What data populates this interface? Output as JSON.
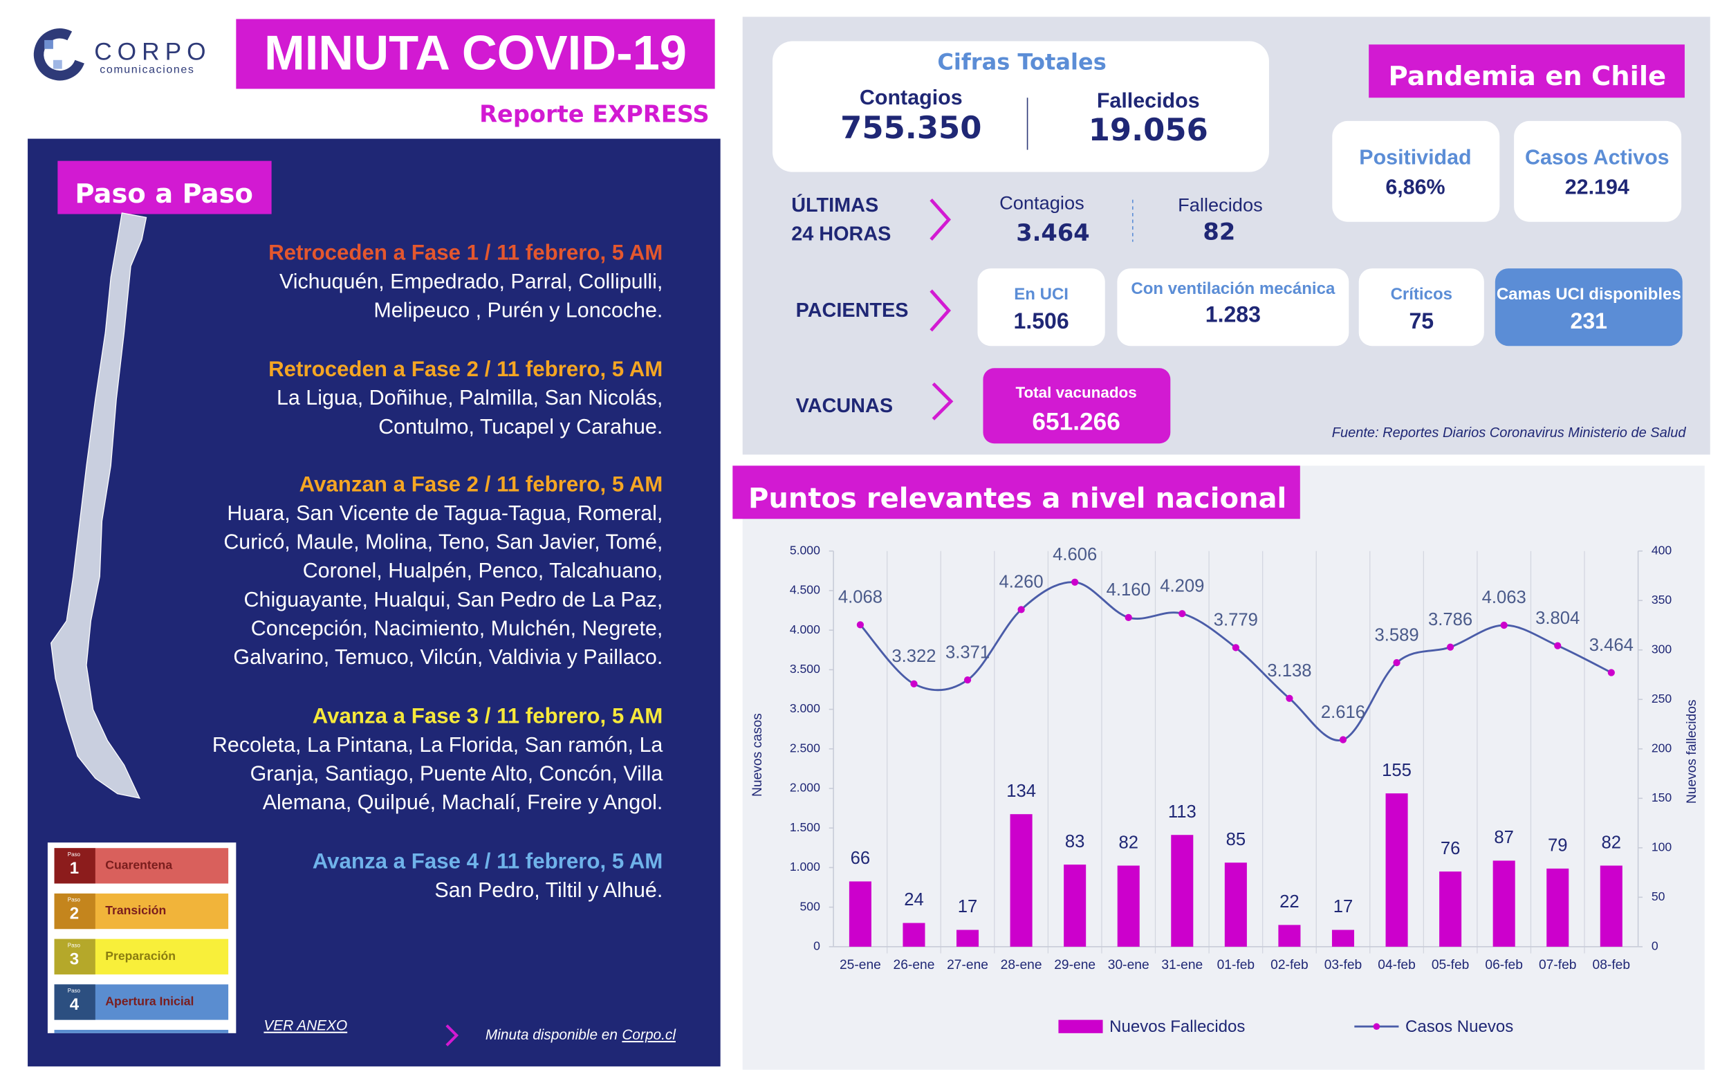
{
  "header": {
    "logo_name": "CORPO",
    "logo_tagline": "comunicaciones",
    "title": "MINUTA COVID-19",
    "subtitle": "Reporte EXPRESS"
  },
  "paso_a_paso": {
    "title": "Paso a Paso",
    "sections": [
      {
        "heading": "Retroceden a Fase 1 / 11 febrero, 5 AM",
        "color": "#e4572e",
        "lines": [
          "Vichuquén, Empedrado, Parral, Collipulli,",
          "Melipeuco , Purén y Loncoche."
        ]
      },
      {
        "heading": "Retroceden a Fase 2 / 11 febrero, 5 AM",
        "color": "#f5a623",
        "lines": [
          "La Ligua, Doñihue, Palmilla, San Nicolás,",
          "Contulmo, Tucapel y Carahue."
        ]
      },
      {
        "heading": "Avanzan a Fase 2 / 11 febrero, 5 AM",
        "color": "#f5a623",
        "lines": [
          "Huara, San Vicente de Tagua-Tagua, Romeral,",
          "Curicó, Maule, Molina, Teno, San Javier, Tomé,",
          "Coronel, Hualpén, Penco,  Talcahuano,",
          "Chiguayante, Hualqui, San Pedro de La Paz,",
          "Concepción, Nacimiento, Mulchén, Negrete,",
          "Galvarino, Temuco, Vilcún, Valdivia y Paillaco."
        ]
      },
      {
        "heading": "Avanza a Fase 3 / 11 febrero, 5 AM",
        "color": "#f7e93b",
        "lines": [
          "Recoleta, La Pintana, La Florida, San ramón, La",
          "Granja,  Santiago, Puente Alto, Concón, Villa",
          "Alemana, Quilpué, Machalí, Freire y Angol."
        ]
      },
      {
        "heading": "Avanza a Fase 4 / 11 febrero, 5 AM",
        "color": "#6fb3ea",
        "lines": [
          "San Pedro, Tiltil y Alhué."
        ]
      }
    ],
    "phase_legend": {
      "step_word": "Paso",
      "phases": [
        {
          "number": "1",
          "label": "Cuarentena"
        },
        {
          "number": "2",
          "label": "Transición"
        },
        {
          "number": "3",
          "label": "Preparación"
        },
        {
          "number": "4",
          "label": "Apertura Inicial"
        }
      ]
    },
    "annex_link": "VER ANEXO",
    "availability_text": "Minuta disponible en",
    "availability_link": "Corpo.cl"
  },
  "totals": {
    "title": "Cifras Totales",
    "cases_label": "Contagios",
    "cases_value": "755.350",
    "deaths_label": "Fallecidos",
    "deaths_value": "19.056"
  },
  "pandemic": {
    "title": "Pandemia en Chile",
    "positivity_label": "Positividad",
    "positivity_value": "6,86%",
    "active_label": "Casos Activos",
    "active_value": "22.194"
  },
  "last_24h": {
    "label_lines": [
      "ÚLTIMAS",
      "24 HORAS"
    ],
    "cases_label": "Contagios",
    "cases_value": "3.464",
    "deaths_label": "Fallecidos",
    "deaths_value": "82"
  },
  "patients": {
    "label": "PACIENTES",
    "items": [
      {
        "label": "En UCI",
        "value": "1.506"
      },
      {
        "label": "Con ventilación mecánica",
        "value": "1.283"
      },
      {
        "label": "Críticos",
        "value": "75"
      },
      {
        "label": "Camas UCI disponibles",
        "value": "231"
      }
    ]
  },
  "vaccines": {
    "label": "VACUNAS",
    "item_label": "Total vacunados",
    "item_value": "651.266"
  },
  "source": "Fuente: Reportes Diarios Coronavirus Ministerio de Salud",
  "chart_data": {
    "type": "combo",
    "title": "Puntos relevantes a nivel nacional",
    "ylabel": "Nuevos casos",
    "y2label": "Nuevos fallecidos",
    "categories": [
      "25-ene",
      "26-ene",
      "27-ene",
      "28-ene",
      "29-ene",
      "30-ene",
      "31-ene",
      "01-feb",
      "02-feb",
      "03-feb",
      "04-feb",
      "05-feb",
      "06-feb",
      "07-feb",
      "08-feb"
    ],
    "series": [
      {
        "name": "Nuevos Fallecidos",
        "type": "bar",
        "axis": "y2",
        "color": "#cc00cc",
        "values": [
          66,
          24,
          17,
          134,
          83,
          82,
          113,
          85,
          22,
          17,
          155,
          76,
          87,
          79,
          82
        ]
      },
      {
        "name": "Casos Nuevos",
        "type": "line",
        "axis": "y",
        "color": "#4a5ca8",
        "values": [
          4068,
          3322,
          3371,
          4260,
          4606,
          4160,
          4209,
          3779,
          3138,
          2616,
          3589,
          3786,
          4063,
          3804,
          3464
        ],
        "value_labels": [
          "4.068",
          "3.322",
          "3.371",
          "4.260",
          "4.606",
          "4.160",
          "4.209",
          "3.779",
          "3.138",
          "2.616",
          "3.589",
          "3.786",
          "4.063",
          "3.804",
          "3.464"
        ]
      }
    ],
    "ylim": [
      0,
      5000
    ],
    "yticks": [
      0,
      500,
      {
        "value": 1000,
        "label": "1.000"
      },
      {
        "value": 1500,
        "label": "1.500"
      },
      {
        "value": 2000,
        "label": "2.000"
      },
      {
        "value": 2500,
        "label": "2.500"
      },
      {
        "value": 3000,
        "label": "3.000"
      },
      {
        "value": 3500,
        "label": "3.500"
      },
      {
        "value": 4000,
        "label": "4.000"
      },
      {
        "value": 4500,
        "label": "4.500"
      },
      {
        "value": 5000,
        "label": "5.000"
      }
    ],
    "y2lim": [
      0,
      400
    ],
    "y2ticks": [
      0,
      50,
      100,
      150,
      200,
      250,
      300,
      350,
      400
    ],
    "legend": "bottom"
  }
}
